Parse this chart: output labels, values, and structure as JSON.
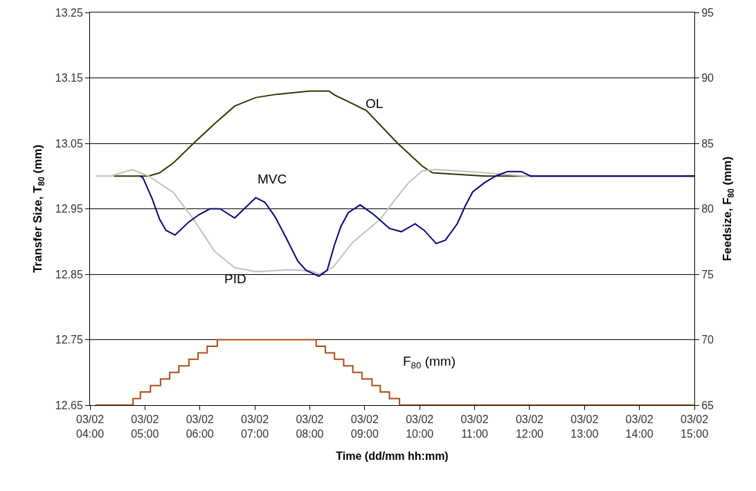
{
  "chart_data": {
    "type": "line",
    "xlabel": "Time (dd/mm hh:mm)",
    "ylabel": "Transfer Size, T$_{80}$ (mm)",
    "y2label": "Feedsize, F$_{80}$ (mm)",
    "xlim": [
      "--02-03T04:00",
      "--02-03T15:00"
    ],
    "xticks": [
      {
        "value": "--02-03T04:00",
        "label": "03/02\n04:00"
      },
      {
        "value": "--02-03T05:00",
        "label": "03/02\n05:00"
      },
      {
        "value": "--02-03T06:00",
        "label": "03/02\n06:00"
      },
      {
        "value": "--02-03T07:00",
        "label": "03/02\n07:00"
      },
      {
        "value": "--02-03T08:00",
        "label": "03/02\n08:00"
      },
      {
        "value": "--02-03T09:00",
        "label": "03/02\n09:00"
      },
      {
        "value": "--02-03T10:00",
        "label": "03/02\n10:00"
      },
      {
        "value": "--02-03T11:00",
        "label": "03/02\n11:00"
      },
      {
        "value": "--02-03T12:00",
        "label": "03/02\n12:00"
      },
      {
        "value": "--02-03T13:00",
        "label": "03/02\n13:00"
      },
      {
        "value": "--02-03T14:00",
        "label": "03/02\n14:00"
      },
      {
        "value": "--02-03T15:00",
        "label": "03/02\n15:00"
      }
    ],
    "ylim": [
      12.65,
      13.25
    ],
    "yticks": [
      12.65,
      12.75,
      12.85,
      12.95,
      13.05,
      13.15,
      13.25
    ],
    "y2lim": [
      65,
      95
    ],
    "y2ticks": [
      65,
      70,
      75,
      80,
      85,
      90,
      95
    ],
    "grid": "y",
    "marker": "none",
    "line_style": "solid",
    "series": [
      {
        "name": "OL",
        "color": "#333300",
        "x": [
          "--02-03T04:26",
          "--02-03T05:04",
          "--02-03T05:16",
          "--02-03T05:31",
          "--02-03T05:53",
          "--02-03T06:16",
          "--02-03T06:38",
          "--02-03T07:01",
          "--02-03T07:24",
          "--02-03T08:00",
          "--02-03T08:21",
          "--02-03T08:27",
          "--02-03T09:02",
          "--02-03T09:36",
          "--02-03T10:03",
          "--02-03T10:14",
          "--02-03T11:11",
          "--02-03T15:00"
        ],
        "values": [
          13.0,
          13.0,
          13.005,
          13.02,
          13.05,
          13.08,
          13.107,
          13.12,
          13.125,
          13.13,
          13.13,
          13.124,
          13.1,
          13.05,
          13.015,
          13.005,
          13.0,
          13.0
        ]
      },
      {
        "name": "PID",
        "color": "#c0c0c0",
        "x": [
          "--02-03T04:06",
          "--02-03T04:23",
          "--02-03T04:46",
          "--02-03T05:04",
          "--02-03T05:31",
          "--02-03T05:53",
          "--02-03T06:16",
          "--02-03T06:38",
          "--02-03T07:01",
          "--02-03T07:39",
          "--02-03T08:02",
          "--02-03T08:10",
          "--02-03T08:25",
          "--02-03T08:47",
          "--02-03T09:17",
          "--02-03T09:32",
          "--02-03T09:48",
          "--02-03T10:03",
          "--02-03T10:18",
          "--02-03T11:11",
          "--02-03T11:56",
          "--02-03T14:50"
        ],
        "values": [
          13.0,
          13.0,
          13.01,
          13.0,
          12.975,
          12.934,
          12.885,
          12.86,
          12.854,
          12.857,
          12.855,
          12.85,
          12.86,
          12.899,
          12.934,
          12.962,
          12.99,
          13.008,
          13.01,
          13.005,
          13.0,
          13.0
        ]
      },
      {
        "name": "MVC",
        "color": "#000080",
        "x": [
          "--02-03T04:55",
          "--02-03T04:58",
          "--02-03T05:08",
          "--02-03T05:16",
          "--02-03T05:23",
          "--02-03T05:33",
          "--02-03T05:48",
          "--02-03T05:59",
          "--02-03T06:11",
          "--02-03T06:22",
          "--02-03T06:38",
          "--02-03T07:01",
          "--02-03T07:11",
          "--02-03T07:22",
          "--02-03T07:34",
          "--02-03T07:47",
          "--02-03T07:56",
          "--02-03T08:10",
          "--02-03T08:19",
          "--02-03T08:27",
          "--02-03T08:34",
          "--02-03T08:42",
          "--02-03T08:55",
          "--02-03T09:10",
          "--02-03T09:27",
          "--02-03T09:40",
          "--02-03T09:55",
          "--02-03T10:05",
          "--02-03T10:18",
          "--02-03T10:28",
          "--02-03T10:41",
          "--02-03T10:50",
          "--02-03T10:58",
          "--02-03T11:11",
          "--02-03T11:23",
          "--02-03T11:36",
          "--02-03T11:51",
          "--02-03T12:01",
          "--02-03T15:00"
        ],
        "values": [
          13.0,
          12.997,
          12.965,
          12.934,
          12.917,
          12.91,
          12.93,
          12.941,
          12.95,
          12.95,
          12.936,
          12.967,
          12.96,
          12.938,
          12.906,
          12.87,
          12.856,
          12.847,
          12.856,
          12.895,
          12.923,
          12.944,
          12.956,
          12.941,
          12.92,
          12.915,
          12.927,
          12.917,
          12.897,
          12.902,
          12.927,
          12.955,
          12.976,
          12.99,
          13.0,
          13.007,
          13.007,
          13.0,
          13.0
        ]
      },
      {
        "name": "F$_{80}$ (mm)",
        "type": "step",
        "axis": "y2",
        "color": "#b04a10",
        "x": [
          "--02-03T04:06",
          "--02-03T04:47",
          "--02-03T04:55",
          "--02-03T05:06",
          "--02-03T05:17",
          "--02-03T05:27",
          "--02-03T05:37",
          "--02-03T05:48",
          "--02-03T05:58",
          "--02-03T06:08",
          "--02-03T06:19",
          "--02-03T08:07",
          "--02-03T08:17",
          "--02-03T08:27",
          "--02-03T08:37",
          "--02-03T08:47",
          "--02-03T08:57",
          "--02-03T09:08",
          "--02-03T09:17",
          "--02-03T09:27",
          "--02-03T09:38",
          "--02-03T15:00"
        ],
        "values": [
          65,
          65.5,
          66,
          66.5,
          67,
          67.5,
          68,
          68.5,
          69,
          69.5,
          70,
          69.5,
          69,
          68.5,
          68,
          67.5,
          67,
          66.5,
          66,
          65.5,
          65,
          65
        ]
      }
    ]
  }
}
